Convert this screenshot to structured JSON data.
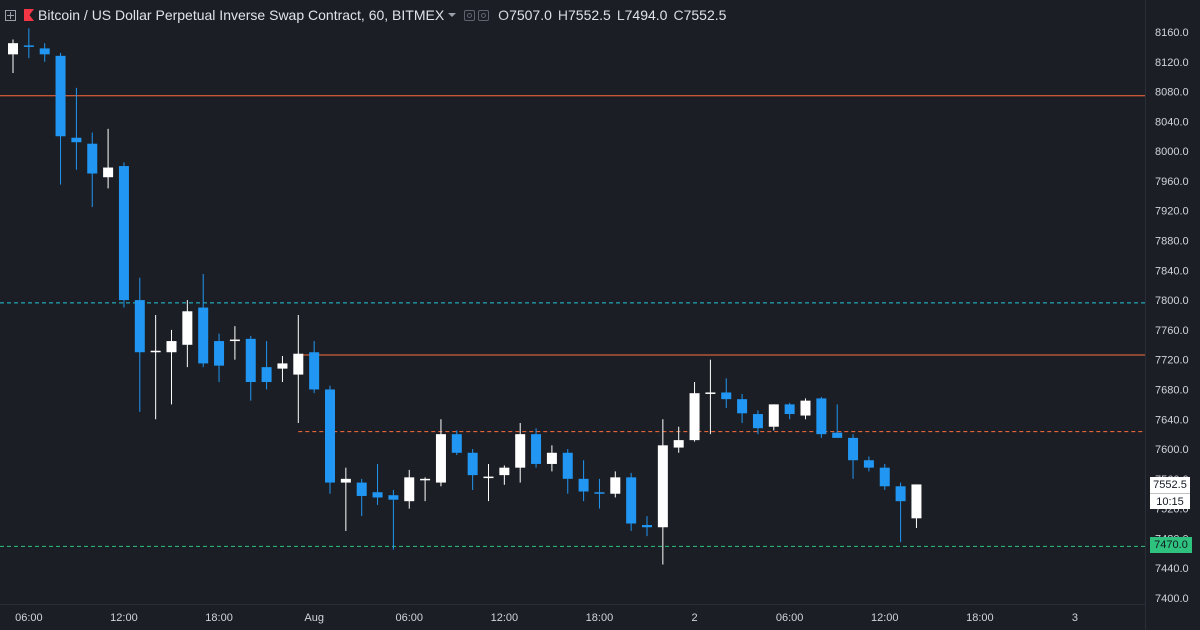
{
  "header": {
    "title": "Bitcoin / US Dollar Perpetual Inverse Swap Contract, 60, BITMEX",
    "ohlc": [
      {
        "key": "O",
        "value": "7507.0"
      },
      {
        "key": "H",
        "value": "7552.5"
      },
      {
        "key": "L",
        "value": "7494.0"
      },
      {
        "key": "C",
        "value": "7552.5"
      }
    ]
  },
  "colors": {
    "background": "#1b1e24",
    "bull": "#ffffff",
    "bear": "#2196f3",
    "resistance": "#ff6d3a",
    "support_cyan": "#26c6da",
    "support_green": "#2ec27e",
    "axis_text": "#d1d4dc"
  },
  "chart_data": {
    "type": "candlestick",
    "ylim": [
      7380,
      8180
    ],
    "y_ticks": [
      "8160.0",
      "8120.0",
      "8080.0",
      "8040.0",
      "8000.0",
      "7960.0",
      "7920.0",
      "7880.0",
      "7840.0",
      "7800.0",
      "7760.0",
      "7720.0",
      "7680.0",
      "7640.0",
      "7600.0",
      "7560.0",
      "7520.0",
      "7480.0",
      "7440.0",
      "7400.0"
    ],
    "x_ticks": [
      {
        "label": "06:00",
        "index": 1
      },
      {
        "label": "12:00",
        "index": 7
      },
      {
        "label": "18:00",
        "index": 13
      },
      {
        "label": "Aug",
        "index": 19
      },
      {
        "label": "06:00",
        "index": 25
      },
      {
        "label": "12:00",
        "index": 31
      },
      {
        "label": "18:00",
        "index": 37
      },
      {
        "label": "2",
        "index": 43
      },
      {
        "label": "06:00",
        "index": 49
      },
      {
        "label": "12:00",
        "index": 55
      },
      {
        "label": "18:00",
        "index": 61
      },
      {
        "label": "3",
        "index": 67
      }
    ],
    "candles": [
      {
        "o": 8130,
        "h": 8150,
        "l": 8105,
        "c": 8145
      },
      {
        "o": 8142,
        "h": 8165,
        "l": 8125,
        "c": 8140
      },
      {
        "o": 8138,
        "h": 8145,
        "l": 8120,
        "c": 8130
      },
      {
        "o": 8128,
        "h": 8132,
        "l": 7955,
        "c": 8020
      },
      {
        "o": 8018,
        "h": 8085,
        "l": 7975,
        "c": 8012
      },
      {
        "o": 8010,
        "h": 8025,
        "l": 7925,
        "c": 7970
      },
      {
        "o": 7965,
        "h": 8030,
        "l": 7950,
        "c": 7978
      },
      {
        "o": 7980,
        "h": 7985,
        "l": 7790,
        "c": 7800
      },
      {
        "o": 7800,
        "h": 7830,
        "l": 7650,
        "c": 7730
      },
      {
        "o": 7730,
        "h": 7780,
        "l": 7640,
        "c": 7732
      },
      {
        "o": 7730,
        "h": 7760,
        "l": 7660,
        "c": 7745
      },
      {
        "o": 7740,
        "h": 7800,
        "l": 7710,
        "c": 7785
      },
      {
        "o": 7790,
        "h": 7835,
        "l": 7710,
        "c": 7715
      },
      {
        "o": 7745,
        "h": 7755,
        "l": 7690,
        "c": 7712
      },
      {
        "o": 7745,
        "h": 7765,
        "l": 7720,
        "c": 7747
      },
      {
        "o": 7748,
        "h": 7752,
        "l": 7665,
        "c": 7690
      },
      {
        "o": 7710,
        "h": 7745,
        "l": 7680,
        "c": 7690
      },
      {
        "o": 7708,
        "h": 7725,
        "l": 7690,
        "c": 7715
      },
      {
        "o": 7700,
        "h": 7780,
        "l": 7635,
        "c": 7728
      },
      {
        "o": 7730,
        "h": 7745,
        "l": 7675,
        "c": 7680
      },
      {
        "o": 7680,
        "h": 7685,
        "l": 7540,
        "c": 7555
      },
      {
        "o": 7555,
        "h": 7575,
        "l": 7490,
        "c": 7560
      },
      {
        "o": 7555,
        "h": 7560,
        "l": 7510,
        "c": 7537
      },
      {
        "o": 7542,
        "h": 7580,
        "l": 7525,
        "c": 7535
      },
      {
        "o": 7538,
        "h": 7545,
        "l": 7465,
        "c": 7532
      },
      {
        "o": 7530,
        "h": 7572,
        "l": 7520,
        "c": 7562
      },
      {
        "o": 7558,
        "h": 7562,
        "l": 7530,
        "c": 7560
      },
      {
        "o": 7555,
        "h": 7640,
        "l": 7550,
        "c": 7620
      },
      {
        "o": 7620,
        "h": 7625,
        "l": 7592,
        "c": 7595
      },
      {
        "o": 7595,
        "h": 7600,
        "l": 7545,
        "c": 7565
      },
      {
        "o": 7562,
        "h": 7580,
        "l": 7530,
        "c": 7563
      },
      {
        "o": 7565,
        "h": 7578,
        "l": 7552,
        "c": 7575
      },
      {
        "o": 7575,
        "h": 7635,
        "l": 7555,
        "c": 7620
      },
      {
        "o": 7620,
        "h": 7628,
        "l": 7575,
        "c": 7580
      },
      {
        "o": 7580,
        "h": 7605,
        "l": 7570,
        "c": 7595
      },
      {
        "o": 7595,
        "h": 7600,
        "l": 7540,
        "c": 7560
      },
      {
        "o": 7560,
        "h": 7585,
        "l": 7530,
        "c": 7543
      },
      {
        "o": 7542,
        "h": 7560,
        "l": 7520,
        "c": 7540
      },
      {
        "o": 7540,
        "h": 7570,
        "l": 7535,
        "c": 7562
      },
      {
        "o": 7562,
        "h": 7568,
        "l": 7490,
        "c": 7500
      },
      {
        "o": 7498,
        "h": 7510,
        "l": 7483,
        "c": 7495
      },
      {
        "o": 7495,
        "h": 7640,
        "l": 7445,
        "c": 7605
      },
      {
        "o": 7602,
        "h": 7630,
        "l": 7595,
        "c": 7612
      },
      {
        "o": 7612,
        "h": 7690,
        "l": 7610,
        "c": 7675
      },
      {
        "o": 7675,
        "h": 7720,
        "l": 7620,
        "c": 7676
      },
      {
        "o": 7676,
        "h": 7695,
        "l": 7655,
        "c": 7667
      },
      {
        "o": 7667,
        "h": 7674,
        "l": 7635,
        "c": 7648
      },
      {
        "o": 7647,
        "h": 7652,
        "l": 7620,
        "c": 7628
      },
      {
        "o": 7630,
        "h": 7660,
        "l": 7625,
        "c": 7660
      },
      {
        "o": 7660,
        "h": 7662,
        "l": 7640,
        "c": 7647
      },
      {
        "o": 7645,
        "h": 7668,
        "l": 7640,
        "c": 7665
      },
      {
        "o": 7668,
        "h": 7670,
        "l": 7615,
        "c": 7620
      },
      {
        "o": 7622,
        "h": 7660,
        "l": 7615,
        "c": 7615
      },
      {
        "o": 7615,
        "h": 7620,
        "l": 7560,
        "c": 7585
      },
      {
        "o": 7585,
        "h": 7590,
        "l": 7570,
        "c": 7575
      },
      {
        "o": 7575,
        "h": 7580,
        "l": 7545,
        "c": 7550
      },
      {
        "o": 7550,
        "h": 7555,
        "l": 7475,
        "c": 7530
      },
      {
        "o": 7507,
        "h": 7552.5,
        "l": 7494,
        "c": 7552.5
      }
    ],
    "horizontal_lines": [
      {
        "price": 8075,
        "style": "solid",
        "color": "#ff6d3a"
      },
      {
        "price": 7797,
        "style": "dashed",
        "color": "#26c6da"
      },
      {
        "price": 7727,
        "style": "solid",
        "color": "#ff6d3a",
        "from_index": 18
      },
      {
        "price": 7624,
        "style": "dashed",
        "color": "#ff6d3a",
        "from_index": 18
      },
      {
        "price": 7470,
        "style": "dashed",
        "color": "#2ec27e"
      }
    ],
    "price_label": "7552.5",
    "countdown_label": "10:15",
    "level_label": "7470.0"
  }
}
